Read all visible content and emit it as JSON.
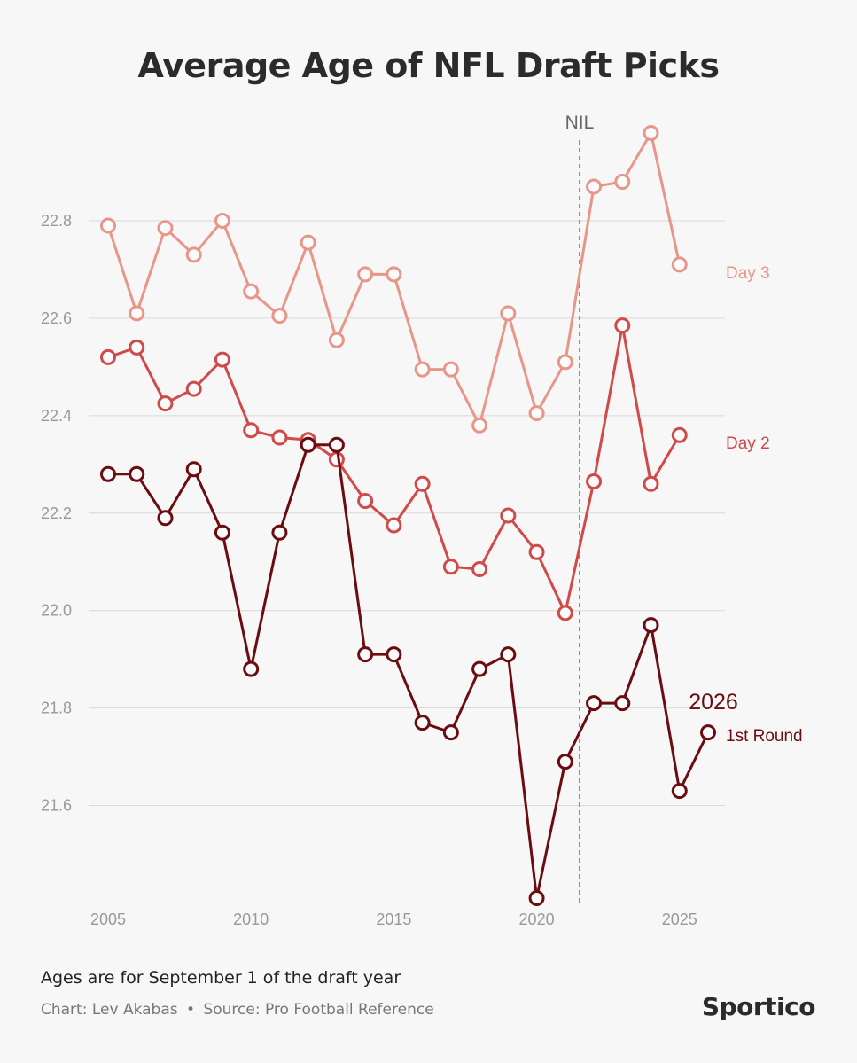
{
  "title": "Average Age of NFL Draft Picks",
  "note": "Ages are for September 1 of the draft year",
  "credit": {
    "chart": "Chart: Lev Akabas",
    "separator": "•",
    "source": "Source: Pro Football Reference"
  },
  "brand": "Sportico",
  "chart_data": {
    "type": "line",
    "title": "Average Age of NFL Draft Picks",
    "xlabel": "",
    "ylabel": "",
    "xlim": [
      2005,
      2026
    ],
    "ylim": [
      21.41,
      22.98
    ],
    "xticks": [
      2005,
      2010,
      2015,
      2020,
      2025
    ],
    "yticks": [
      21.6,
      21.8,
      22.0,
      22.2,
      22.4,
      22.6,
      22.8
    ],
    "grid": "horizontal",
    "annotations": [
      {
        "text": "NIL",
        "x": 2021.5,
        "type": "vertical-dashed-line"
      },
      {
        "text": "2026",
        "x": 2026,
        "series": "1st Round"
      }
    ],
    "x": [
      2005,
      2006,
      2007,
      2008,
      2009,
      2010,
      2011,
      2012,
      2013,
      2014,
      2015,
      2016,
      2017,
      2018,
      2019,
      2020,
      2021,
      2022,
      2023,
      2024,
      2025,
      2026
    ],
    "series": [
      {
        "name": "Day 3",
        "color": "#e8968a",
        "values": [
          22.79,
          22.61,
          22.785,
          22.73,
          22.8,
          22.655,
          22.605,
          22.755,
          22.555,
          22.69,
          22.69,
          22.495,
          22.495,
          22.38,
          22.61,
          22.405,
          22.51,
          22.87,
          22.88,
          22.98,
          22.71,
          null
        ]
      },
      {
        "name": "Day 2",
        "color": "#cf4a48",
        "values": [
          22.52,
          22.54,
          22.425,
          22.455,
          22.515,
          22.37,
          22.355,
          22.35,
          22.31,
          22.225,
          22.175,
          22.26,
          22.09,
          22.085,
          22.195,
          22.12,
          21.995,
          22.265,
          22.585,
          22.26,
          22.36,
          null
        ]
      },
      {
        "name": "1st Round",
        "color": "#6b0c10",
        "values": [
          22.28,
          22.28,
          22.19,
          22.29,
          22.16,
          21.88,
          22.16,
          22.34,
          22.34,
          21.91,
          21.91,
          21.77,
          21.75,
          21.88,
          21.91,
          21.41,
          21.69,
          21.81,
          21.81,
          21.97,
          21.63,
          21.75
        ]
      }
    ]
  }
}
